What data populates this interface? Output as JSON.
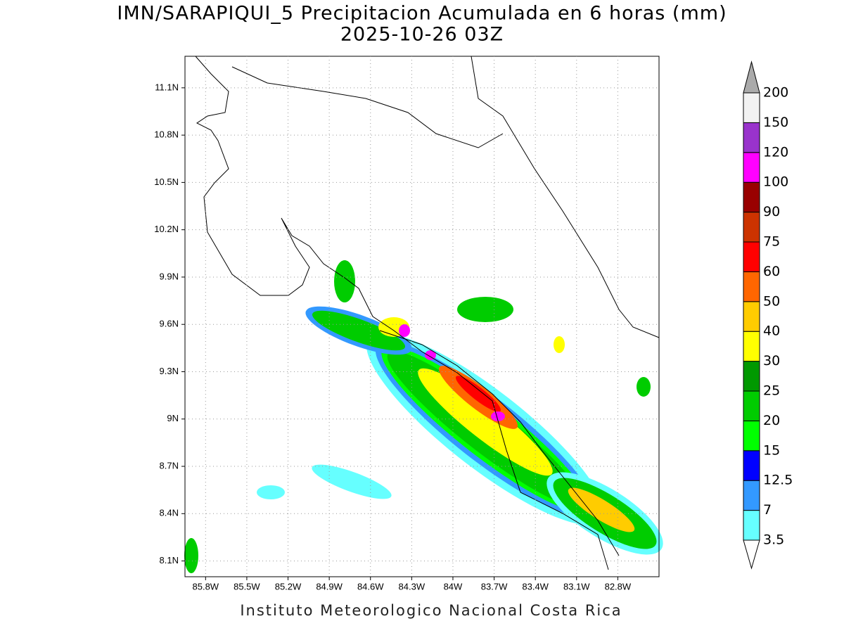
{
  "map": {
    "title": "IMN/SARAPIQUI_5 Precipitacion Acumulada en 6 horas (mm)",
    "subtitle": "2025-10-26 03Z",
    "lon_range": [
      -85.95,
      -82.5
    ],
    "lat_range": [
      8.0,
      11.3
    ],
    "lat_ticks": [
      {
        "value": 8.1,
        "label": "8.1N"
      },
      {
        "value": 8.4,
        "label": "8.4N"
      },
      {
        "value": 8.7,
        "label": "8.7N"
      },
      {
        "value": 9,
        "label": "9N"
      },
      {
        "value": 9.3,
        "label": "9.3N"
      },
      {
        "value": 9.6,
        "label": "9.6N"
      },
      {
        "value": 9.9,
        "label": "9.9N"
      },
      {
        "value": 10.2,
        "label": "10.2N"
      },
      {
        "value": 10.5,
        "label": "10.5N"
      },
      {
        "value": 10.8,
        "label": "10.8N"
      },
      {
        "value": 11.1,
        "label": "11.1N"
      }
    ],
    "lon_ticks": [
      {
        "value": -85.8,
        "label": "85.8W"
      },
      {
        "value": -85.5,
        "label": "85.5W"
      },
      {
        "value": -85.2,
        "label": "85.2W"
      },
      {
        "value": -84.9,
        "label": "84.9W"
      },
      {
        "value": -84.6,
        "label": "84.6W"
      },
      {
        "value": -84.3,
        "label": "84.3W"
      },
      {
        "value": -84,
        "label": "84W"
      },
      {
        "value": -83.7,
        "label": "83.7W"
      },
      {
        "value": -83.4,
        "label": "83.4W"
      },
      {
        "value": -83.1,
        "label": "83.1W"
      },
      {
        "value": -82.8,
        "label": "82.8W"
      }
    ],
    "footer": "Instituto Meteorologico Nacional Costa Rica"
  },
  "colorbar": {
    "levels": [
      3.5,
      7,
      12.5,
      15,
      20,
      25,
      30,
      40,
      50,
      60,
      75,
      90,
      100,
      120,
      150,
      200
    ],
    "colors": [
      "#66ffff",
      "#3399ff",
      "#0000ff",
      "#00ff00",
      "#00cc00",
      "#009900",
      "#ffff00",
      "#ffcc00",
      "#ff6600",
      "#ff0000",
      "#cc3300",
      "#990000",
      "#ff00ff",
      "#9933cc",
      "#f2f2f2"
    ],
    "under_color": "#ffffff",
    "over_color": "#aaaaaa"
  }
}
